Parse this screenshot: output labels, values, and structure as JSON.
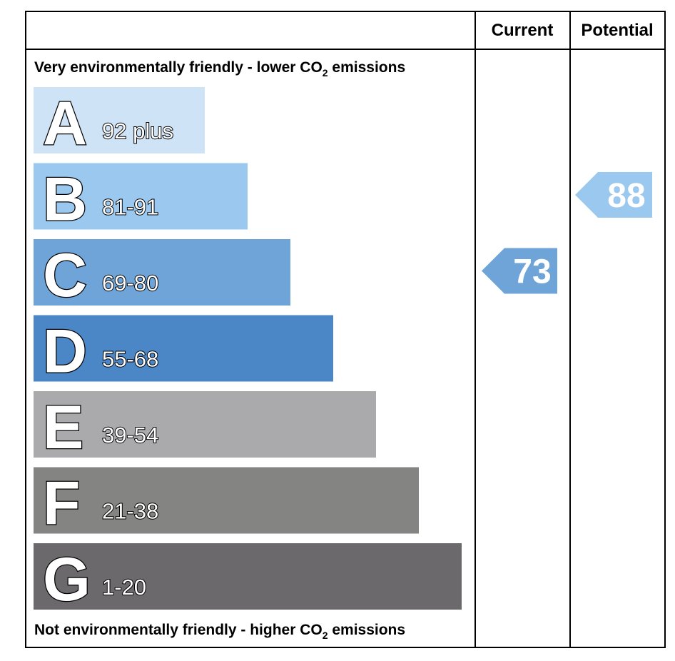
{
  "chart_data": {
    "type": "bar",
    "header": {
      "current_label": "Current",
      "potential_label": "Potential"
    },
    "top_caption": {
      "text": "Very environmentally friendly - lower CO",
      "subscript": "2",
      "suffix": " emissions"
    },
    "bottom_caption": {
      "text": "Not environmentally friendly - higher CO",
      "subscript": "2",
      "suffix": " emissions"
    },
    "bands": [
      {
        "letter": "A",
        "range": "92 plus",
        "color": "#cfe3f6"
      },
      {
        "letter": "B",
        "range": "81-91",
        "color": "#9bc8ee"
      },
      {
        "letter": "C",
        "range": "69-80",
        "color": "#6fa4d9"
      },
      {
        "letter": "D",
        "range": "55-68",
        "color": "#4b86c6"
      },
      {
        "letter": "E",
        "range": "39-54",
        "color": "#aaaaac"
      },
      {
        "letter": "F",
        "range": "21-38",
        "color": "#848582"
      },
      {
        "letter": "G",
        "range": "1-20",
        "color": "#6b696b"
      }
    ],
    "current": {
      "value": 73,
      "band": "C",
      "color": "#6fa4d9"
    },
    "potential": {
      "value": 88,
      "band": "B",
      "color": "#9bc8ee"
    }
  }
}
